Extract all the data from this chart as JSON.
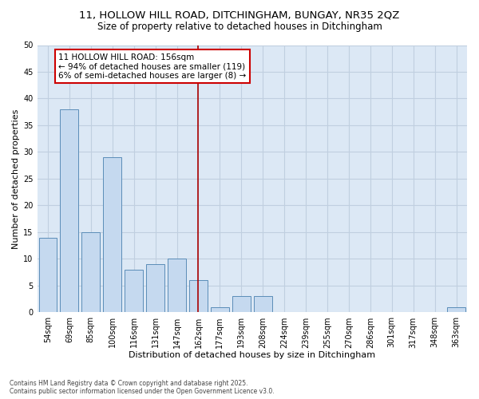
{
  "title_line1": "11, HOLLOW HILL ROAD, DITCHINGHAM, BUNGAY, NR35 2QZ",
  "title_line2": "Size of property relative to detached houses in Ditchingham",
  "xlabel": "Distribution of detached houses by size in Ditchingham",
  "ylabel": "Number of detached properties",
  "categories": [
    "54sqm",
    "69sqm",
    "85sqm",
    "100sqm",
    "116sqm",
    "131sqm",
    "147sqm",
    "162sqm",
    "177sqm",
    "193sqm",
    "208sqm",
    "224sqm",
    "239sqm",
    "255sqm",
    "270sqm",
    "286sqm",
    "301sqm",
    "317sqm",
    "348sqm",
    "363sqm"
  ],
  "values": [
    14,
    38,
    15,
    29,
    8,
    9,
    10,
    6,
    1,
    3,
    3,
    0,
    0,
    0,
    0,
    0,
    0,
    0,
    0,
    1
  ],
  "bar_color": "#c5d9ef",
  "bar_edge_color": "#5b8db8",
  "vline_x": 7,
  "vline_color": "#aa0000",
  "annotation_text": "11 HOLLOW HILL ROAD: 156sqm\n← 94% of detached houses are smaller (119)\n6% of semi-detached houses are larger (8) →",
  "annotation_box_facecolor": "#ffffff",
  "annotation_box_edgecolor": "#cc0000",
  "ylim": [
    0,
    50
  ],
  "yticks": [
    0,
    5,
    10,
    15,
    20,
    25,
    30,
    35,
    40,
    45,
    50
  ],
  "fig_facecolor": "#ffffff",
  "plot_facecolor": "#dce8f5",
  "grid_color": "#c0cfe0",
  "footer_text": "Contains HM Land Registry data © Crown copyright and database right 2025.\nContains public sector information licensed under the Open Government Licence v3.0.",
  "title_fontsize": 9.5,
  "subtitle_fontsize": 8.5,
  "tick_fontsize": 7,
  "xlabel_fontsize": 8,
  "ylabel_fontsize": 8,
  "annotation_fontsize": 7.5
}
